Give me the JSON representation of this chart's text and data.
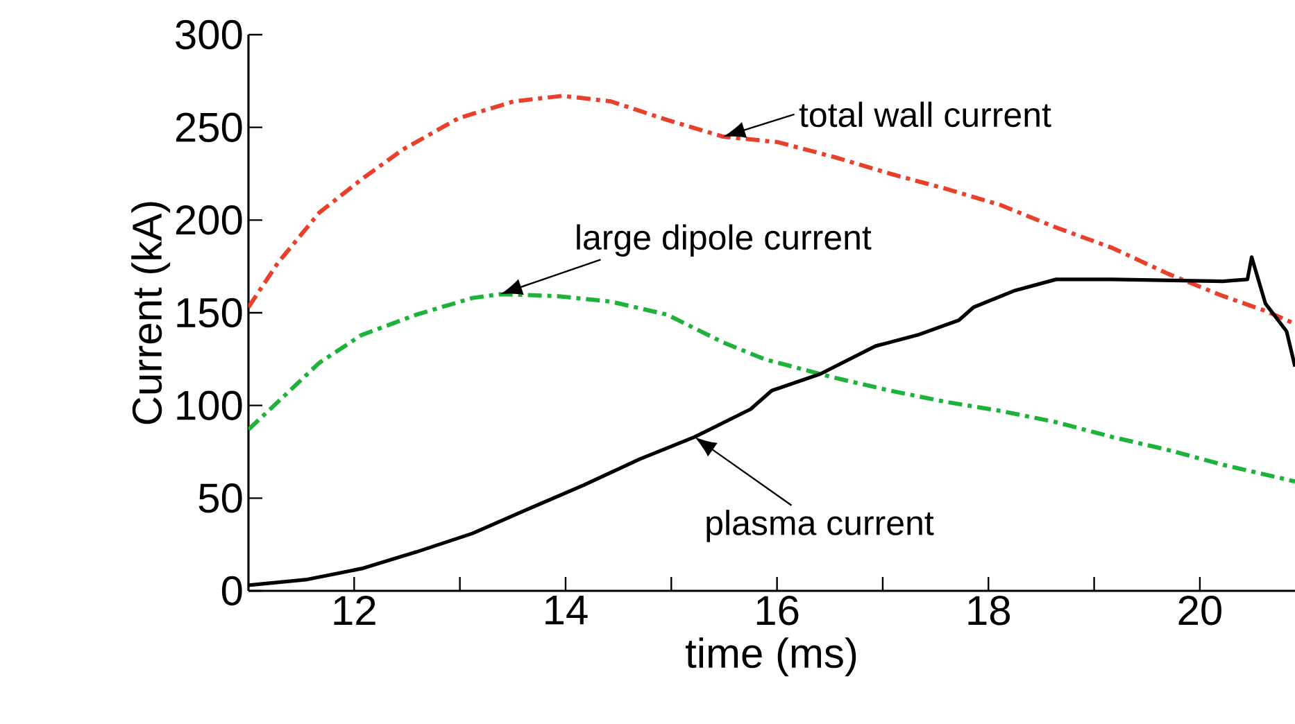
{
  "chart_data": {
    "type": "line",
    "xlabel": "time (ms)",
    "ylabel": "Current (kA)",
    "xlim": [
      11,
      20.9
    ],
    "ylim": [
      0,
      300
    ],
    "xticks": [
      12,
      {
        "value": 13,
        "label": null
      },
      14,
      {
        "value": 15,
        "label": null
      },
      16,
      {
        "value": 17,
        "label": null
      },
      18,
      {
        "value": 19,
        "label": null
      },
      20
    ],
    "yticks": [
      0,
      50,
      100,
      150,
      200,
      250,
      300
    ],
    "grid": false,
    "marker": "none",
    "annotations": [
      {
        "text": "total wall current",
        "x": 15.49,
        "y": 245
      },
      {
        "text": "large dipole current",
        "x": 13.38,
        "y": 160
      },
      {
        "text": "plasma current",
        "x": 15.22,
        "y": 83
      }
    ],
    "series": [
      {
        "color": "#e8402a",
        "line_style": "dashed",
        "x": [
          11.0,
          11.28,
          11.67,
          12.07,
          12.46,
          12.99,
          13.51,
          13.97,
          14.43,
          14.96,
          15.49,
          16.01,
          16.54,
          17.07,
          17.59,
          18.12,
          18.64,
          19.17,
          19.7,
          20.22,
          20.62,
          20.9
        ],
        "values": [
          153,
          177,
          204,
          222,
          238,
          255,
          264,
          267,
          264,
          254,
          245,
          242,
          234,
          225,
          217,
          208,
          196,
          185,
          171,
          159,
          151,
          144
        ]
      },
      {
        "color": "#1db33a",
        "line_style": "dashed",
        "x": [
          11.0,
          11.28,
          11.67,
          12.07,
          12.59,
          13.12,
          13.38,
          13.92,
          14.43,
          14.96,
          15.49,
          15.88,
          16.54,
          17.07,
          17.59,
          18.12,
          18.64,
          19.17,
          19.7,
          20.22,
          20.9
        ],
        "values": [
          87,
          102,
          123,
          138,
          149,
          158,
          160,
          159,
          156,
          149,
          134,
          125,
          115,
          108,
          102,
          97,
          91,
          83,
          76,
          68,
          59
        ]
      },
      {
        "color": "#000000",
        "line_style": "solid",
        "x": [
          11.0,
          11.54,
          12.07,
          12.59,
          13.12,
          13.64,
          14.17,
          14.7,
          15.22,
          15.75,
          15.95,
          16.41,
          16.93,
          17.33,
          17.72,
          17.86,
          18.25,
          18.64,
          19.17,
          20.22,
          20.45,
          20.49,
          20.62,
          20.82,
          20.9
        ],
        "values": [
          3,
          6,
          12,
          21,
          31,
          44,
          57,
          71,
          83,
          98,
          108,
          117,
          132,
          138,
          146,
          153,
          162,
          168,
          168,
          167,
          168,
          180,
          155,
          140,
          121
        ]
      }
    ]
  }
}
